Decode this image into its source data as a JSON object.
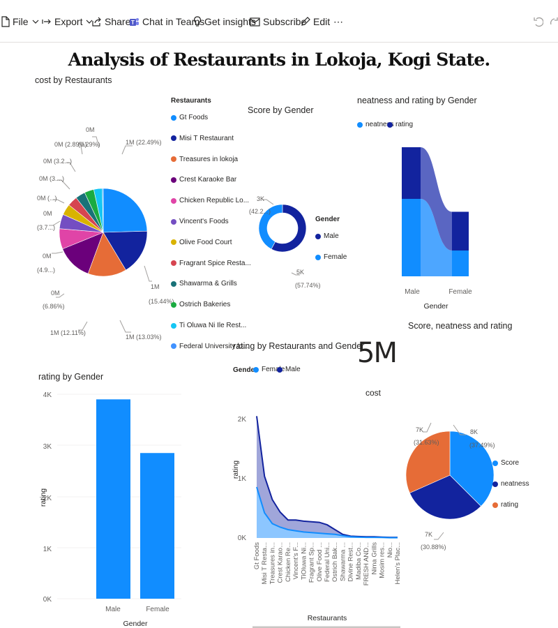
{
  "toolbar": {
    "file": "File",
    "export": "Export",
    "share": "Share",
    "chat": "Chat in Teams",
    "insights": "Get insights",
    "subscribe": "Subscribe",
    "edit": "Edit",
    "more": "⋯"
  },
  "report": {
    "title": "Analysis of Restaurants in Lokoja, Kogi State."
  },
  "colors": {
    "c1": "#118dff",
    "c2": "#12239e",
    "c3": "#e66c37",
    "c4": "#6b007b",
    "c5": "#e044a7",
    "c6": "#744ec2",
    "c7": "#d9b300",
    "c8": "#d64550",
    "c9": "#197278",
    "c10": "#1aab40",
    "c11": "#15c6f4",
    "c12": "#4092ff"
  },
  "pie_cost": {
    "title": "cost by Restaurants",
    "legend_title": "Restaurants",
    "legend": [
      "Gt Foods",
      "Misi T Restaurant",
      "Treasures in lokoja",
      "Crest Karaoke Bar",
      "Chicken Republic Lo...",
      "Vincent's Foods",
      "Olive Food Court",
      "Fragrant Spice Resta...",
      "Shawarma & Grills",
      "Ostrich Bakeries",
      "Ti Oluwa Ni Ile Rest...",
      "Federal University lo..."
    ],
    "labels": {
      "l1": "1M (22.49%)",
      "l2a": "1M",
      "l2b": "(15.44%)",
      "l3": "1M (13.03%)",
      "l4": "1M (12.11%)",
      "l5a": "0M",
      "l5b": "(6.86%)",
      "l6a": "0M",
      "l6b": "(4.9...)",
      "l7a": "0M",
      "l7b": "(3.7...)",
      "l8": "0M (...)",
      "l9": "0M (3....)",
      "l10": "0M (3.2...)",
      "l11": "0M (2.89%)",
      "l12a": "0M",
      "l12b": "(0.29%)"
    }
  },
  "donut_score": {
    "title": "Score by Gender",
    "legend_title": "Gender",
    "legend": [
      "Male",
      "Female"
    ],
    "labels": {
      "a": "3K",
      "b": "(42.2...)",
      "c": "5K",
      "d": "(57.74%)"
    }
  },
  "ribbon": {
    "title": "neatness and rating by Gender",
    "legend": [
      "neatness",
      "rating"
    ],
    "x": [
      "Male",
      "Female"
    ],
    "xlabel": "Gender"
  },
  "pie2_title": "Score, neatness and rating",
  "card": {
    "value": "5M",
    "label": "cost"
  },
  "bar_rating": {
    "title": "rating by Gender",
    "yticks": [
      "4K",
      "3K",
      "2K",
      "1K",
      "0K"
    ],
    "ylabel": "rating",
    "categories": [
      "Male",
      "Female"
    ],
    "xlabel": "Gender"
  },
  "area_rating": {
    "title": "rating by Restaurants and Gender",
    "legend_title": "Gender",
    "legend": [
      "Female",
      "Male"
    ],
    "yticks": [
      "2K",
      "1K",
      "0K"
    ],
    "ylabel": "rating",
    "xlabel": "Restaurants",
    "xticks": [
      "Gt Foods",
      "Misi T Resta...",
      "Treasures in...",
      "Crest Karao...",
      "Chicken Re...",
      "Vincent's F...",
      "TiOluwa Ni...",
      "Fragrant Sp...",
      "Olive Food ...",
      "Federal Uni...",
      "Ostrich Bak...",
      "Shawarma ...",
      "Divine Rest...",
      "Madiba Co...",
      "FRESH AND...",
      "Nima Grills",
      "Mosim res...",
      "Nio...",
      "Helen's Plac..."
    ]
  },
  "pie_snr": {
    "legend": [
      "Score",
      "neatness",
      "rating"
    ],
    "labels": {
      "a": "8K",
      "b": "(37.49%)",
      "c": "7K",
      "d": "(31.63%)",
      "e": "7K",
      "f": "(30.88%)"
    }
  },
  "chart_data": [
    {
      "type": "pie",
      "title": "cost by Restaurants",
      "categories": [
        "Gt Foods",
        "Misi T Restaurant",
        "Treasures in lokoja",
        "Crest Karaoke Bar",
        "Chicken Republic Lo...",
        "Vincent's Foods",
        "Olive Food Court",
        "Fragrant Spice Resta...",
        "Shawarma & Grills",
        "Ostrich Bakeries",
        "Ti Oluwa Ni Ile Rest...",
        "Federal University lo..."
      ],
      "values": [
        22.49,
        15.44,
        13.03,
        12.11,
        6.86,
        4.9,
        3.7,
        3.4,
        3.3,
        3.2,
        2.89,
        0.29
      ]
    },
    {
      "type": "pie",
      "title": "Score by Gender",
      "categories": [
        "Male",
        "Female"
      ],
      "values": [
        57.74,
        42.26
      ]
    },
    {
      "type": "area",
      "title": "neatness and rating by Gender",
      "categories": [
        "Male",
        "Female"
      ],
      "series": [
        {
          "name": "neatness",
          "values": [
            6000,
            2000
          ]
        },
        {
          "name": "rating",
          "values": [
            4000,
            3000
          ]
        }
      ]
    },
    {
      "type": "bar",
      "title": "rating by Gender",
      "categories": [
        "Male",
        "Female"
      ],
      "values": [
        3900,
        2850
      ],
      "ylabel": "rating",
      "xlabel": "Gender",
      "ylim": [
        0,
        4000
      ]
    },
    {
      "type": "area",
      "title": "rating by Restaurants and Gender",
      "categories": [
        "Gt Foods",
        "Misi T Resta...",
        "Treasures in...",
        "Crest Karao...",
        "Chicken Re...",
        "Vincent's F...",
        "TiOluwa Ni...",
        "Fragrant Sp...",
        "Olive Food ...",
        "Federal Uni...",
        "Ostrich Bak...",
        "Shawarma ...",
        "Divine Rest...",
        "Madiba Co...",
        "FRESH AND...",
        "Nima Grills",
        "Mosim res...",
        "Nio...",
        "Helen's Plac..."
      ],
      "series": [
        {
          "name": "Female",
          "values": [
            850,
            420,
            240,
            180,
            140,
            120,
            100,
            90,
            80,
            70,
            60,
            40,
            20,
            15,
            10,
            10,
            8,
            5,
            5
          ]
        },
        {
          "name": "Male",
          "values": [
            2030,
            1030,
            640,
            430,
            300,
            300,
            280,
            270,
            260,
            220,
            140,
            60,
            30,
            25,
            20,
            20,
            15,
            10,
            10
          ]
        }
      ],
      "ylabel": "rating",
      "xlabel": "Restaurants",
      "ylim": [
        0,
        2000
      ]
    },
    {
      "type": "pie",
      "title": "Score, neatness and rating",
      "categories": [
        "Score",
        "neatness",
        "rating"
      ],
      "values": [
        37.49,
        30.88,
        31.63
      ]
    }
  ]
}
